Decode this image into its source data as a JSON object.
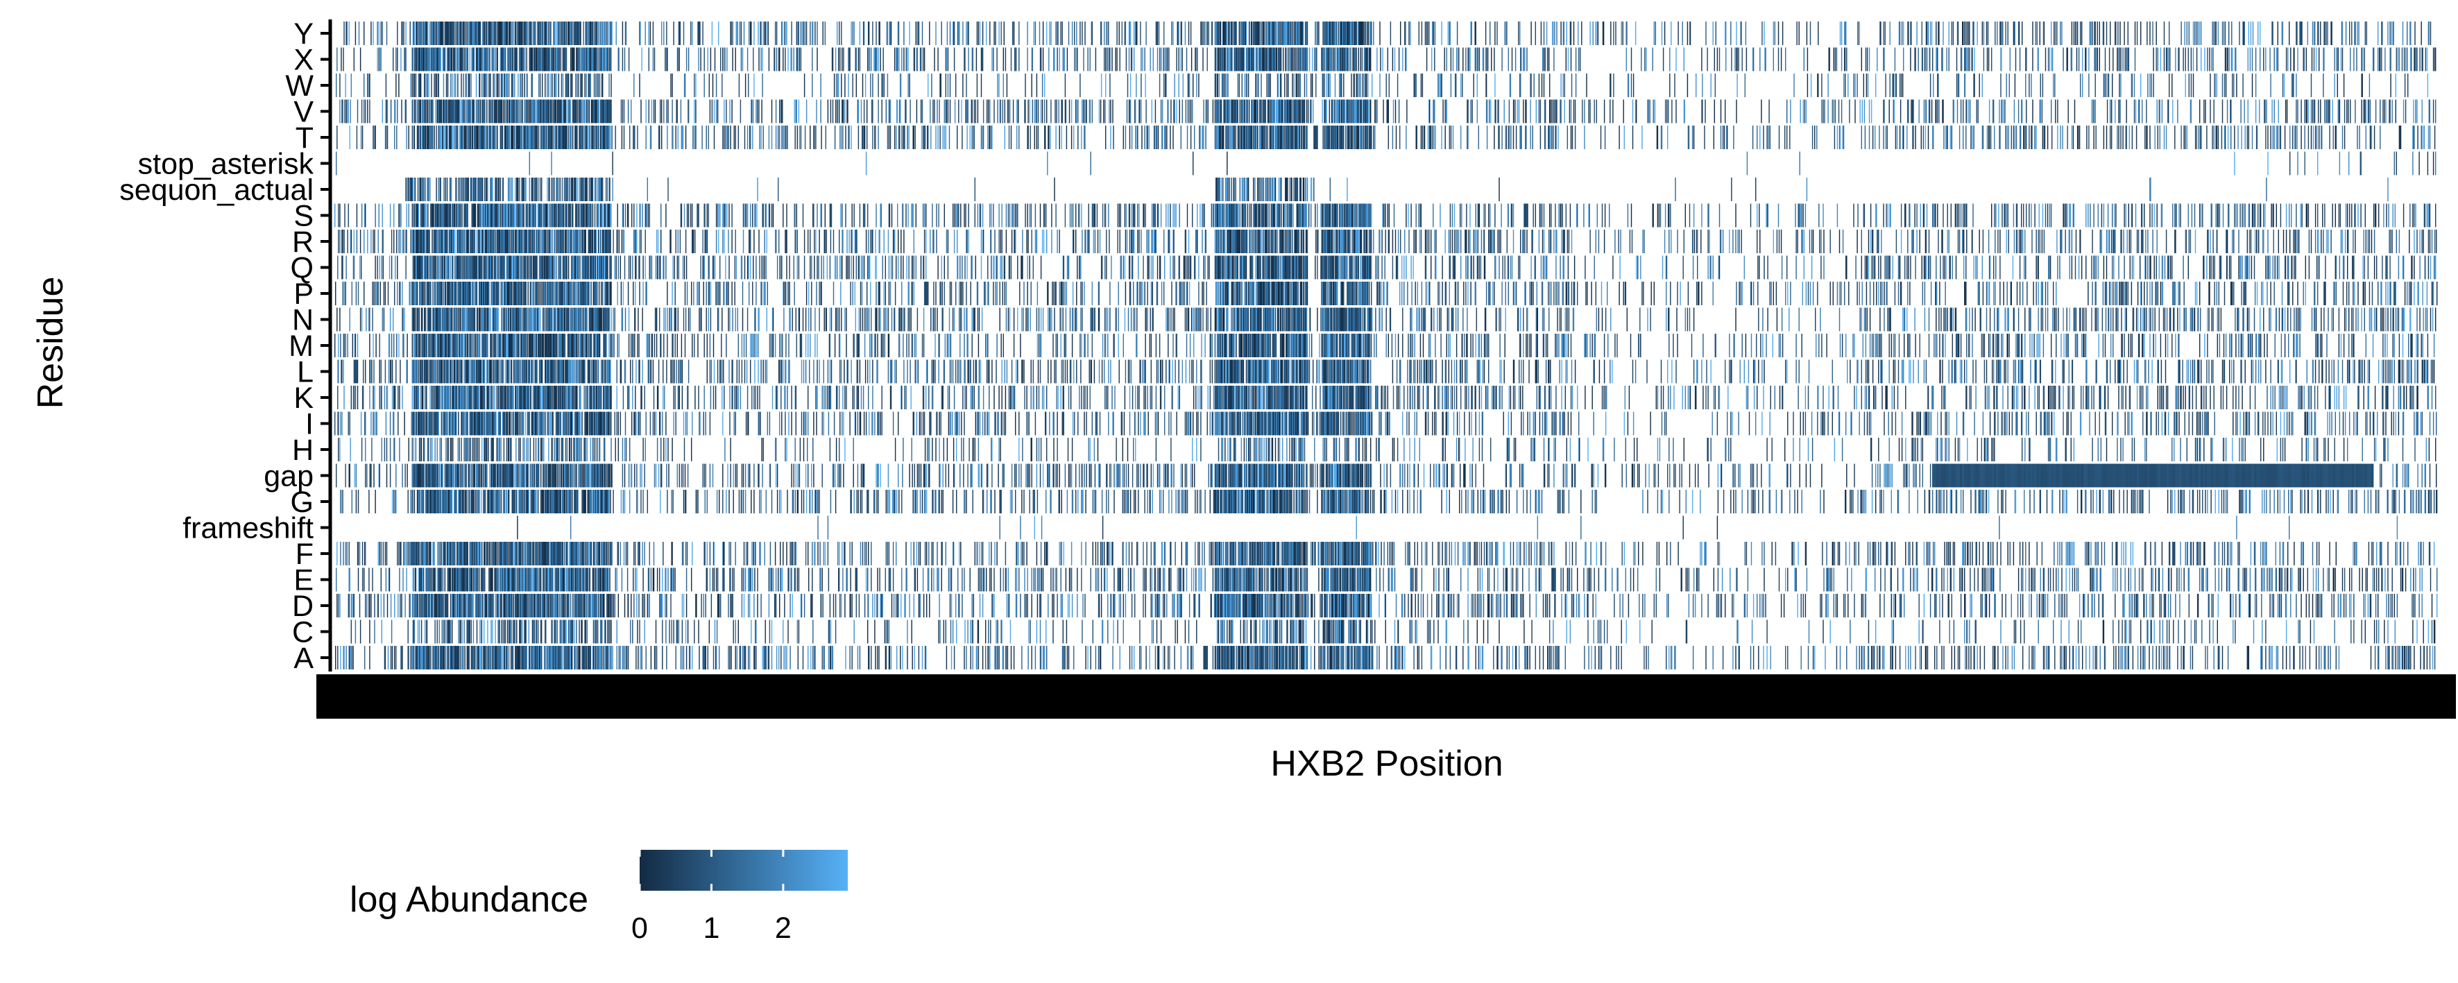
{
  "chart_data": {
    "type": "heatmap",
    "xlabel": "HXB2 Position",
    "ylabel": "Residue",
    "x_range": [
      1,
      2960
    ],
    "y_categories": [
      "Y",
      "X",
      "W",
      "V",
      "T",
      "stop_asterisk",
      "sequon_actual",
      "S",
      "R",
      "Q",
      "P",
      "N",
      "M",
      "L",
      "K",
      "I",
      "H",
      "gap",
      "G",
      "frameshift",
      "F",
      "E",
      "D",
      "C",
      "A"
    ],
    "legend": {
      "title": "log Abundance",
      "ticks": [
        0,
        1,
        2
      ],
      "range": [
        0,
        2.9
      ],
      "colors": {
        "low": "#132B43",
        "high": "#56B1F7"
      },
      "placement": "bottom-left"
    },
    "grid": false,
    "background": "#ffffff"
  }
}
